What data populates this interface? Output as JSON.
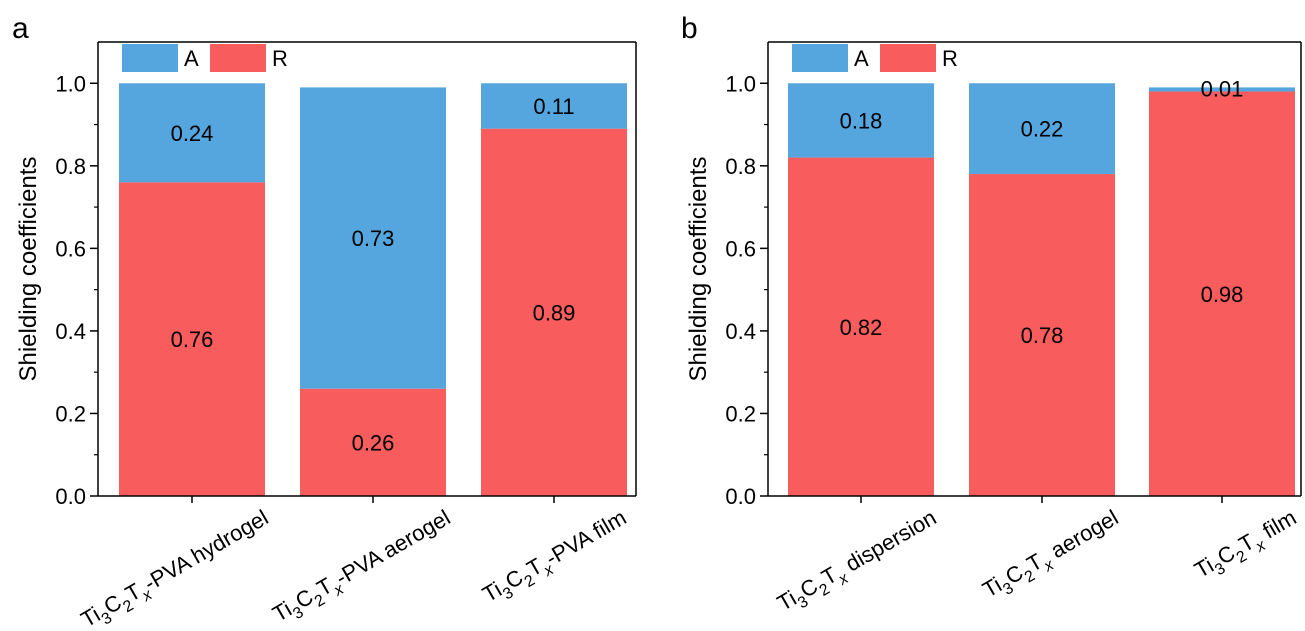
{
  "chart_data": [
    {
      "type": "bar",
      "stacked": true,
      "panel": "a",
      "ylabel": "Shielding coefficients",
      "ylim": [
        0,
        1.1
      ],
      "yticks": [
        "0.0",
        "0.2",
        "0.4",
        "0.6",
        "0.8",
        "1.0"
      ],
      "categories": [
        {
          "main": "Ti",
          "sub1": "3",
          "mid1": "C",
          "sub2": "2",
          "mid2": "T",
          "sub3": "x",
          "suffix": "-PVA hydrogel"
        },
        {
          "main": "Ti",
          "sub1": "3",
          "mid1": "C",
          "sub2": "2",
          "mid2": "T",
          "sub3": "x",
          "suffix": "-PVA aerogel"
        },
        {
          "main": "Ti",
          "sub1": "3",
          "mid1": "C",
          "sub2": "2",
          "mid2": "T",
          "sub3": "x",
          "suffix": "-PVA film"
        }
      ],
      "series": [
        {
          "name": "R",
          "color": "#f85c5c",
          "values": [
            0.76,
            0.26,
            0.89
          ],
          "labels": [
            "0.76",
            "0.26",
            "0.89"
          ]
        },
        {
          "name": "A",
          "color": "#55a6de",
          "values": [
            0.24,
            0.73,
            0.11
          ],
          "labels": [
            "0.24",
            "0.73",
            "0.11"
          ]
        }
      ],
      "legend": [
        "A",
        "R"
      ],
      "legend_position": "top-left"
    },
    {
      "type": "bar",
      "stacked": true,
      "panel": "b",
      "ylabel": "Shielding coefficients",
      "ylim": [
        0,
        1.1
      ],
      "yticks": [
        "0.0",
        "0.2",
        "0.4",
        "0.6",
        "0.8",
        "1.0"
      ],
      "categories": [
        {
          "main": "Ti",
          "sub1": "3",
          "mid1": "C",
          "sub2": "2",
          "mid2": "T",
          "sub3": "x",
          "suffix": " dispersion"
        },
        {
          "main": "Ti",
          "sub1": "3",
          "mid1": "C",
          "sub2": "2",
          "mid2": "T",
          "sub3": "x",
          "suffix": "  aerogel"
        },
        {
          "main": "Ti",
          "sub1": "3",
          "mid1": "C",
          "sub2": "2",
          "mid2": "T",
          "sub3": "x",
          "suffix": "  film"
        }
      ],
      "series": [
        {
          "name": "R",
          "color": "#f85c5c",
          "values": [
            0.82,
            0.78,
            0.98
          ],
          "labels": [
            "0.82",
            "0.78",
            "0.98"
          ]
        },
        {
          "name": "A",
          "color": "#55a6de",
          "values": [
            0.18,
            0.22,
            0.01
          ],
          "labels": [
            "0.18",
            "0.22",
            "0.01"
          ]
        }
      ],
      "legend": [
        "A",
        "R"
      ],
      "legend_position": "top-left"
    }
  ]
}
